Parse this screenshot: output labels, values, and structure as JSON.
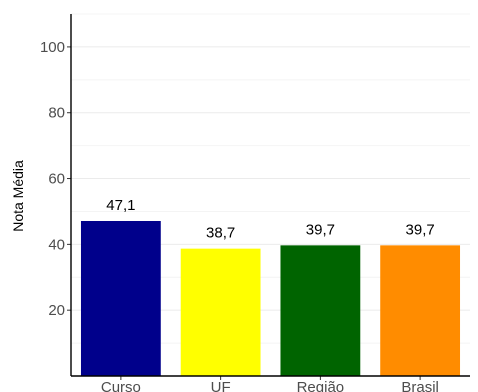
{
  "chart_data": {
    "type": "bar",
    "title": "",
    "xlabel": "",
    "ylabel": "Nota Média",
    "categories": [
      "Curso",
      "UF",
      "Região",
      "Brasil"
    ],
    "values": [
      47.1,
      38.7,
      39.7,
      39.7
    ],
    "data_labels": [
      "47,1",
      "38,7",
      "39,7",
      "39,7"
    ],
    "colors": [
      "#00008b",
      "#ffff00",
      "#006400",
      "#ff8c00"
    ],
    "yticks": [
      20,
      40,
      60,
      80,
      100
    ],
    "ytick_labels": [
      "20",
      "40",
      "60",
      "80",
      "100"
    ],
    "ylim": [
      0,
      110
    ],
    "grid": true,
    "legend": "none"
  }
}
